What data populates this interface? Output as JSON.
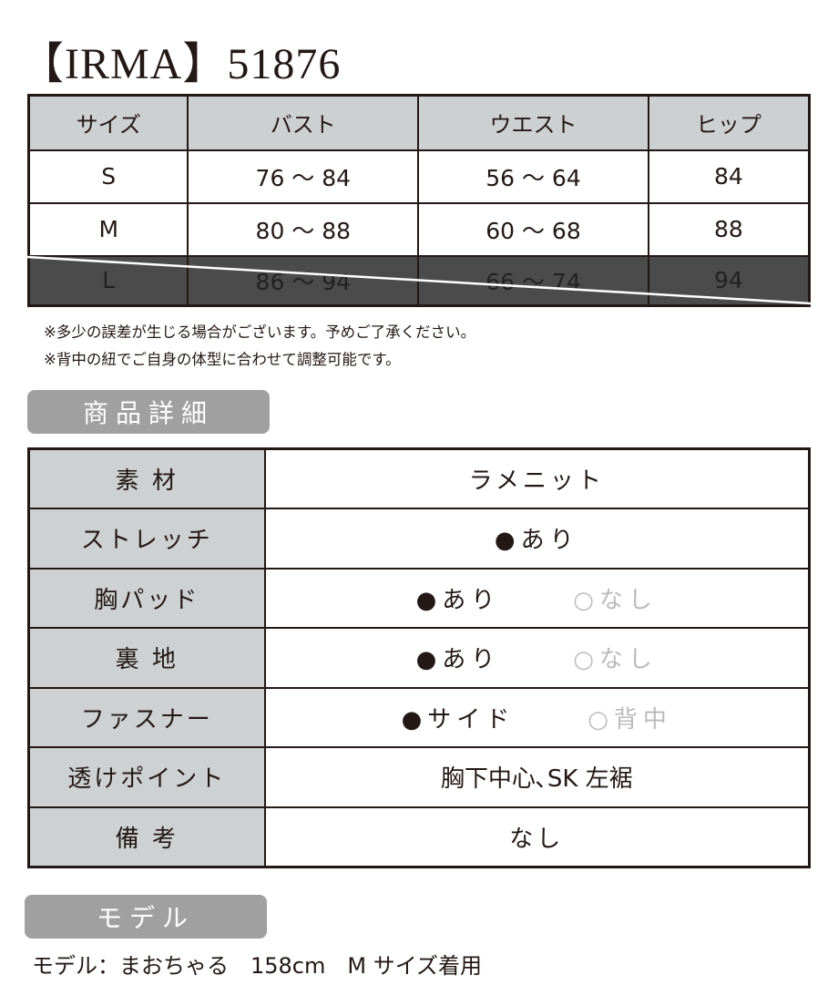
{
  "title": "【IRMA】51876",
  "size_table": {
    "headers": [
      "サイズ",
      "バスト",
      "ウエスト",
      "ヒップ"
    ],
    "rows": [
      {
        "size": "S",
        "bust": "76 ～ 84",
        "waist": "56 ～ 64",
        "hip": "84",
        "available": true
      },
      {
        "size": "M",
        "bust": "80 ～ 88",
        "waist": "60 ～ 68",
        "hip": "88",
        "available": true
      },
      {
        "size": "L",
        "bust": "86 ～ 94",
        "waist": "66 ～ 74",
        "hip": "94",
        "available": false
      }
    ]
  },
  "notes": [
    "※多少の誤差が生じる場合がございます。予めご了承ください。",
    "※背中の紐でご自身の体型に合わせて調整可能です。"
  ],
  "details_heading": "商品詳細",
  "details": [
    {
      "label": "素 材",
      "value": "ラメニット"
    },
    {
      "label": "ストレッチ",
      "selected": "●あり"
    },
    {
      "label": "胸パッド",
      "selected": "●あり",
      "other": "○なし"
    },
    {
      "label": "裏 地",
      "selected": "●あり",
      "other": "○なし"
    },
    {
      "label": "ファスナー",
      "selected": "●サイド",
      "other": "○背中"
    },
    {
      "label": "透けポイント",
      "value": "胸下中心､SK 左裾"
    },
    {
      "label": "備 考",
      "value": "なし"
    }
  ],
  "model_heading": "モデル",
  "model_text": "モデル：まおちゃる　158cm　M サイズ着用"
}
